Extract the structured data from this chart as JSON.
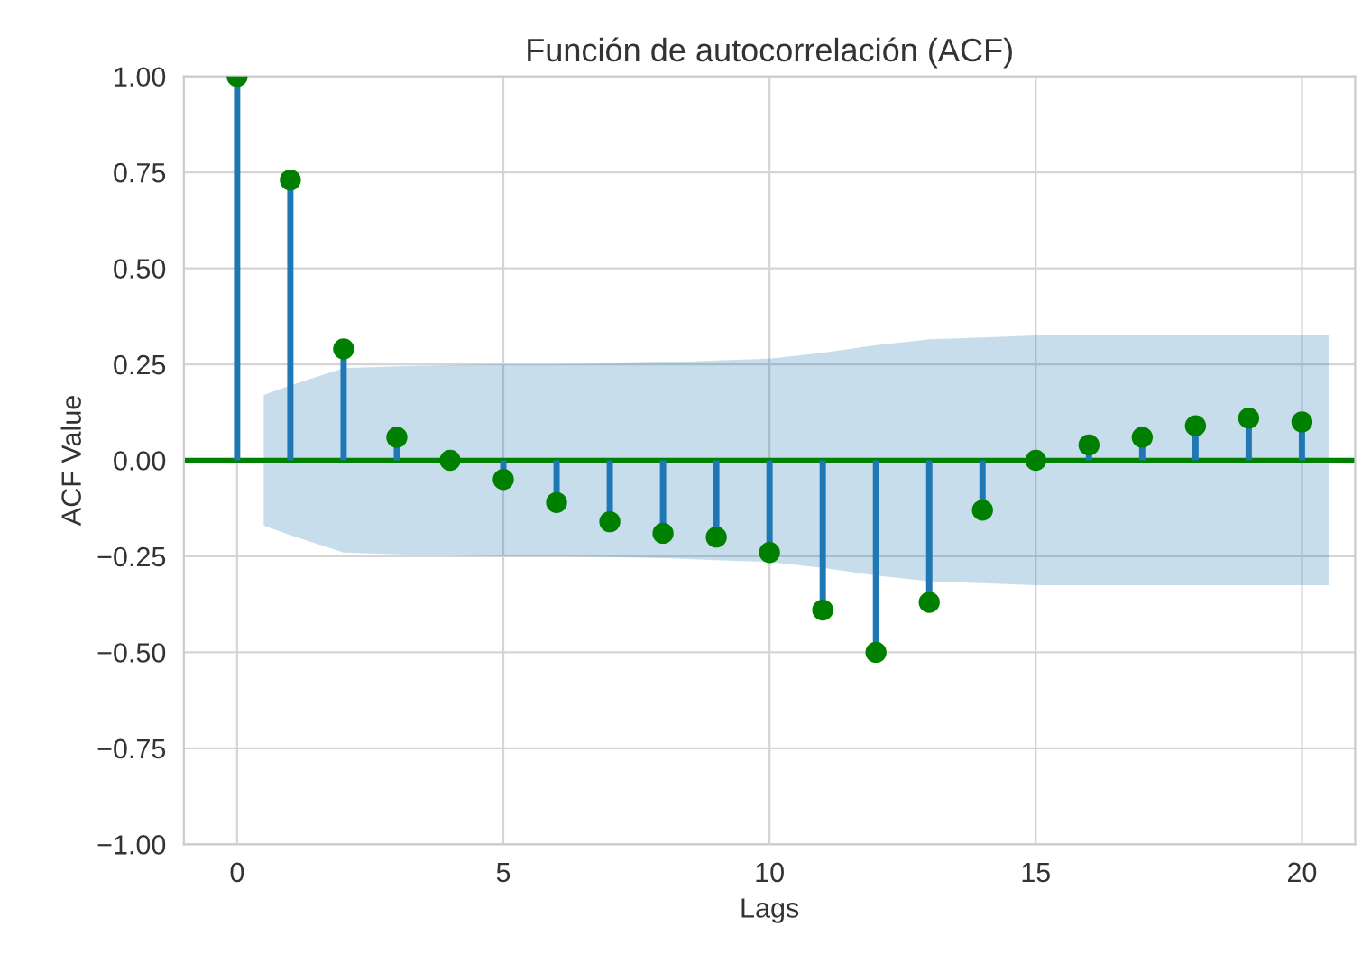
{
  "chart_data": {
    "type": "lollipop",
    "title": "Función de autocorrelación (ACF)",
    "xlabel": "Lags",
    "ylabel": "ACF Value",
    "series": [
      {
        "type": "lollipop",
        "color": "#1f77b4",
        "colors": [
          "#008000",
          "#008000",
          "#008000",
          "#008000",
          "#008000",
          "#008000",
          "#008000",
          "#008000",
          "#008000",
          "#008000",
          "#008000",
          "#008000",
          "#008000",
          "#008000",
          "#008000",
          "#008000",
          "#008000",
          "#008000",
          "#008000",
          "#008000",
          "#008000"
        ],
        "x": [
          0,
          1,
          2,
          3,
          4,
          5,
          6,
          7,
          8,
          9,
          10,
          11,
          12,
          13,
          14,
          15,
          16,
          17,
          18,
          19,
          20
        ],
        "values": [
          1.0,
          0.73,
          0.29,
          0.06,
          0.0,
          -0.05,
          -0.11,
          -0.16,
          -0.19,
          -0.2,
          -0.24,
          -0.39,
          -0.5,
          -0.37,
          -0.13,
          0.0,
          0.04,
          0.06,
          0.09,
          0.11,
          0.1
        ]
      },
      {
        "type": "line",
        "color": "#008000",
        "marker": "none",
        "x": [
          -1,
          0.5,
          1,
          2,
          3,
          4,
          5,
          6,
          7,
          8,
          9,
          10,
          11,
          12,
          13,
          14,
          15,
          16,
          17,
          18,
          19,
          20,
          20.5,
          21
        ],
        "values": [
          0,
          0,
          0,
          0,
          0,
          0,
          0,
          0,
          0,
          0,
          0,
          0,
          0,
          0,
          0,
          0,
          0,
          0,
          0,
          0,
          0,
          0,
          0,
          0
        ],
        "lower": [
          null,
          -0.17,
          -0.195,
          -0.24,
          -0.245,
          -0.248,
          -0.25,
          -0.25,
          -0.252,
          -0.255,
          -0.26,
          -0.265,
          -0.28,
          -0.3,
          -0.315,
          -0.32,
          -0.325,
          -0.325,
          -0.325,
          -0.325,
          -0.325,
          -0.325,
          -0.325,
          null
        ],
        "upper": [
          null,
          0.17,
          0.195,
          0.24,
          0.245,
          0.248,
          0.25,
          0.25,
          0.252,
          0.255,
          0.26,
          0.265,
          0.28,
          0.3,
          0.315,
          0.32,
          0.325,
          0.325,
          0.325,
          0.325,
          0.325,
          0.325,
          0.325,
          null
        ]
      }
    ],
    "xlim": [
      -1,
      21
    ],
    "xticks": [
      0,
      5,
      10,
      15,
      20
    ],
    "ylim": [
      -1,
      1
    ],
    "yticks": [
      {
        "value": -1,
        "label": "−1.00"
      },
      {
        "value": -0.75,
        "label": "−0.75"
      },
      {
        "value": -0.5,
        "label": "−0.50"
      },
      {
        "value": -0.25,
        "label": "−0.25"
      },
      {
        "value": 0,
        "label": "0.00"
      },
      {
        "value": 0.25,
        "label": "0.25"
      },
      {
        "value": 0.5,
        "label": "0.50"
      },
      {
        "value": 0.75,
        "label": "0.75"
      },
      {
        "value": 1,
        "label": "1.00"
      }
    ],
    "grid": true,
    "marker": "circle",
    "legend": false
  }
}
